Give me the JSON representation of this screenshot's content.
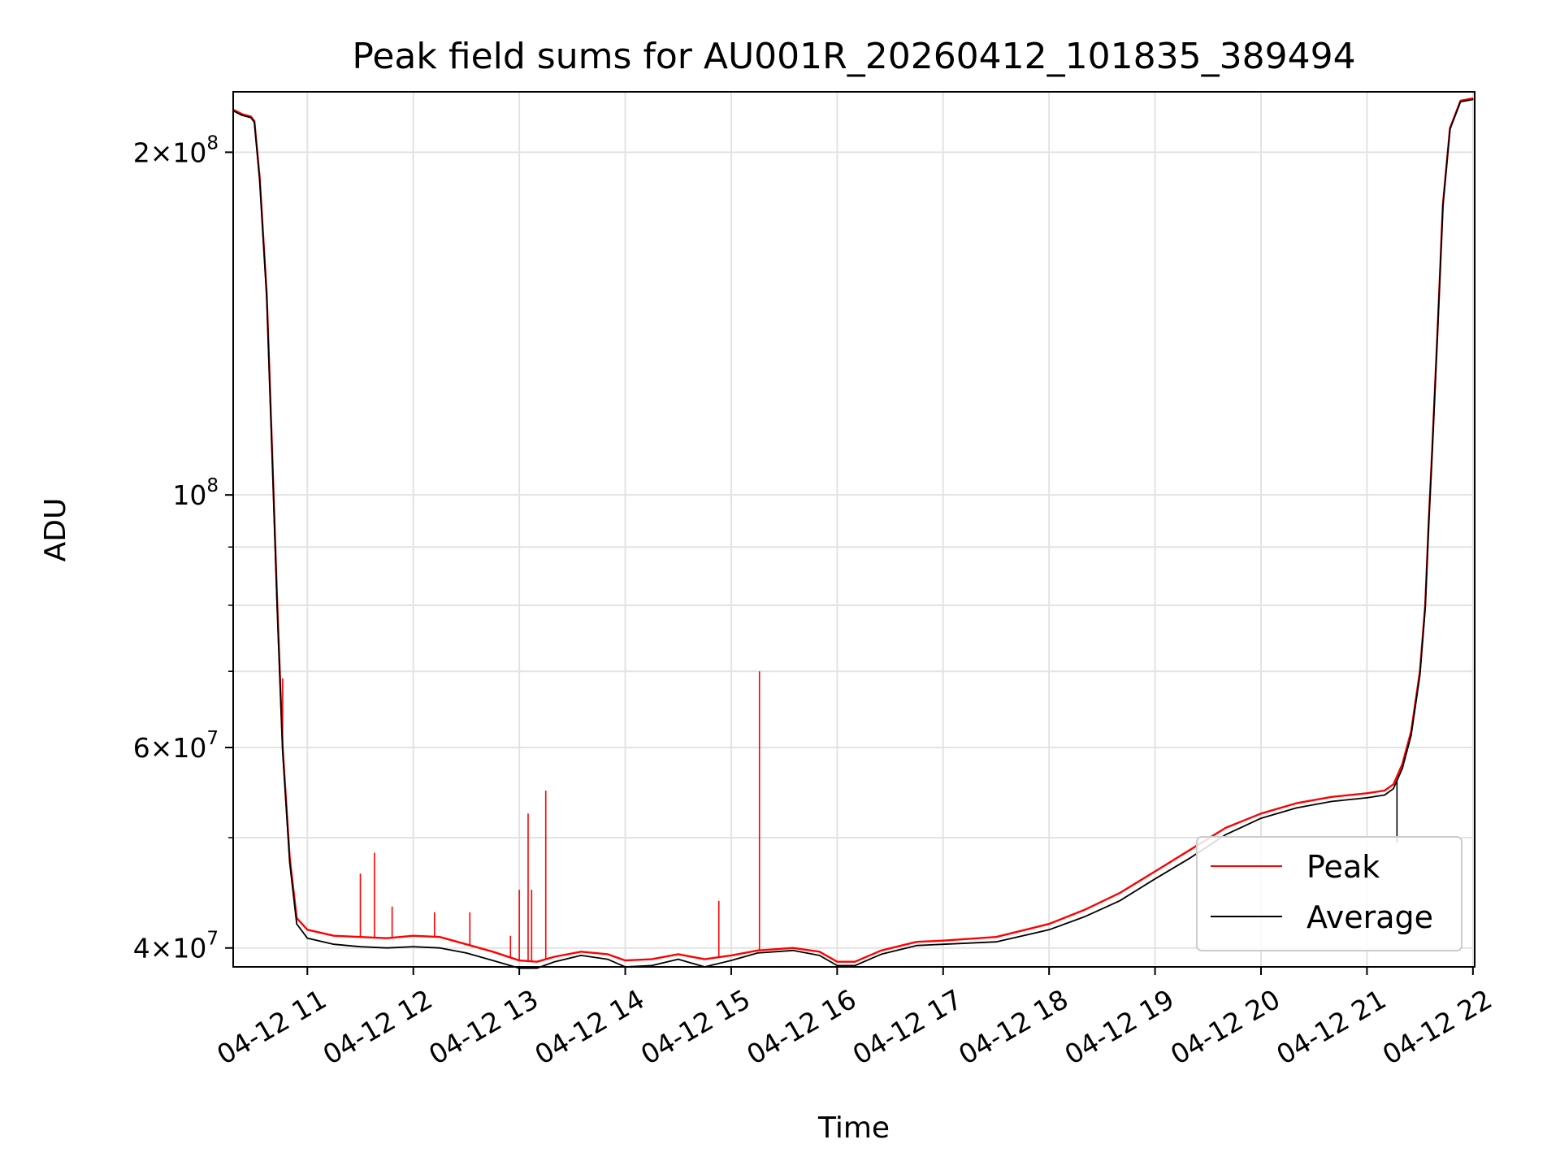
{
  "chart_data": {
    "type": "line",
    "title": "Peak field sums for AU001R_20260412_101835_389494",
    "xlabel": "Time",
    "ylabel": "ADU",
    "y_scale": "log",
    "ylim": [
      38500000,
      226000000
    ],
    "xlim": [
      "2026-04-12 10:18",
      "2026-04-12 22:01"
    ],
    "grid": true,
    "legend_position": "lower-right",
    "x_ticks": [
      {
        "value": "2026-04-12 11:00",
        "label": "04-12 11"
      },
      {
        "value": "2026-04-12 12:00",
        "label": "04-12 12"
      },
      {
        "value": "2026-04-12 13:00",
        "label": "04-12 13"
      },
      {
        "value": "2026-04-12 14:00",
        "label": "04-12 14"
      },
      {
        "value": "2026-04-12 15:00",
        "label": "04-12 15"
      },
      {
        "value": "2026-04-12 16:00",
        "label": "04-12 16"
      },
      {
        "value": "2026-04-12 17:00",
        "label": "04-12 17"
      },
      {
        "value": "2026-04-12 18:00",
        "label": "04-12 18"
      },
      {
        "value": "2026-04-12 19:00",
        "label": "04-12 19"
      },
      {
        "value": "2026-04-12 20:00",
        "label": "04-12 20"
      },
      {
        "value": "2026-04-12 21:00",
        "label": "04-12 21"
      },
      {
        "value": "2026-04-12 22:00",
        "label": "04-12 22"
      }
    ],
    "y_ticks": [
      {
        "value": 40000000,
        "base": "4×10",
        "exp": "7"
      },
      {
        "value": 60000000,
        "base": "6×10",
        "exp": "7"
      },
      {
        "value": 100000000,
        "base": "10",
        "exp": "8"
      },
      {
        "value": 200000000,
        "base": "2×10",
        "exp": "8"
      }
    ],
    "y_minor_ticks": [
      50000000,
      70000000,
      80000000,
      90000000
    ],
    "series": [
      {
        "name": "Peak",
        "color": "#ff0000",
        "points": [
          [
            "2026-04-12 10:18",
            218000000
          ],
          [
            "2026-04-12 10:23",
            216000000
          ],
          [
            "2026-04-12 10:28",
            215000000
          ],
          [
            "2026-04-12 10:30",
            213000000
          ],
          [
            "2026-04-12 10:33",
            190000000
          ],
          [
            "2026-04-12 10:37",
            150000000
          ],
          [
            "2026-04-12 10:40",
            110000000
          ],
          [
            "2026-04-12 10:43",
            80000000
          ],
          [
            "2026-04-12 10:46",
            60000000
          ],
          [
            "2026-04-12 10:50",
            48000000
          ],
          [
            "2026-04-12 10:54",
            42500000
          ],
          [
            "2026-04-12 11:00",
            41500000
          ],
          [
            "2026-04-12 11:15",
            41000000
          ],
          [
            "2026-04-12 11:30",
            40900000
          ],
          [
            "2026-04-12 11:45",
            40800000
          ],
          [
            "2026-04-12 12:00",
            41000000
          ],
          [
            "2026-04-12 12:15",
            40900000
          ],
          [
            "2026-04-12 12:30",
            40300000
          ],
          [
            "2026-04-12 12:45",
            39700000
          ],
          [
            "2026-04-12 13:00",
            39000000
          ],
          [
            "2026-04-12 13:10",
            38900000
          ],
          [
            "2026-04-12 13:20",
            39300000
          ],
          [
            "2026-04-12 13:35",
            39700000
          ],
          [
            "2026-04-12 13:50",
            39500000
          ],
          [
            "2026-04-12 14:00",
            39000000
          ],
          [
            "2026-04-12 14:15",
            39100000
          ],
          [
            "2026-04-12 14:30",
            39500000
          ],
          [
            "2026-04-12 14:45",
            39100000
          ],
          [
            "2026-04-12 15:00",
            39400000
          ],
          [
            "2026-04-12 15:15",
            39800000
          ],
          [
            "2026-04-12 15:35",
            40000000
          ],
          [
            "2026-04-12 15:50",
            39700000
          ],
          [
            "2026-04-12 16:00",
            38900000
          ],
          [
            "2026-04-12 16:10",
            38900000
          ],
          [
            "2026-04-12 16:25",
            39800000
          ],
          [
            "2026-04-12 16:45",
            40500000
          ],
          [
            "2026-04-12 17:00",
            40600000
          ],
          [
            "2026-04-12 17:30",
            40900000
          ],
          [
            "2026-04-12 18:00",
            42000000
          ],
          [
            "2026-04-12 18:20",
            43200000
          ],
          [
            "2026-04-12 18:40",
            44700000
          ],
          [
            "2026-04-12 19:00",
            46700000
          ],
          [
            "2026-04-12 19:20",
            48800000
          ],
          [
            "2026-04-12 19:40",
            51000000
          ],
          [
            "2026-04-12 20:00",
            52500000
          ],
          [
            "2026-04-12 20:20",
            53600000
          ],
          [
            "2026-04-12 20:40",
            54300000
          ],
          [
            "2026-04-12 21:00",
            54700000
          ],
          [
            "2026-04-12 21:10",
            55000000
          ],
          [
            "2026-04-12 21:15",
            55700000
          ],
          [
            "2026-04-12 21:20",
            58000000
          ],
          [
            "2026-04-12 21:25",
            62000000
          ],
          [
            "2026-04-12 21:30",
            70000000
          ],
          [
            "2026-04-12 21:33",
            80000000
          ],
          [
            "2026-04-12 21:35",
            95000000
          ],
          [
            "2026-04-12 21:37",
            110000000
          ],
          [
            "2026-04-12 21:40",
            140000000
          ],
          [
            "2026-04-12 21:43",
            180000000
          ],
          [
            "2026-04-12 21:47",
            210000000
          ],
          [
            "2026-04-12 21:53",
            222000000
          ],
          [
            "2026-04-12 22:00",
            223000000
          ]
        ],
        "spikes": [
          [
            "2026-04-12 10:46",
            69000000
          ],
          [
            "2026-04-12 11:30",
            46500000
          ],
          [
            "2026-04-12 11:38",
            48500000
          ],
          [
            "2026-04-12 11:48",
            43500000
          ],
          [
            "2026-04-12 12:12",
            43000000
          ],
          [
            "2026-04-12 12:32",
            43000000
          ],
          [
            "2026-04-12 12:55",
            41000000
          ],
          [
            "2026-04-12 13:00",
            45000000
          ],
          [
            "2026-04-12 13:05",
            52500000
          ],
          [
            "2026-04-12 13:07",
            45000000
          ],
          [
            "2026-04-12 13:15",
            55000000
          ],
          [
            "2026-04-12 14:53",
            44000000
          ],
          [
            "2026-04-12 15:16",
            70000000
          ]
        ]
      },
      {
        "name": "Average",
        "color": "#000000",
        "points": [
          [
            "2026-04-12 10:18",
            217500000
          ],
          [
            "2026-04-12 10:23",
            215500000
          ],
          [
            "2026-04-12 10:28",
            214500000
          ],
          [
            "2026-04-12 10:30",
            212500000
          ],
          [
            "2026-04-12 10:33",
            189000000
          ],
          [
            "2026-04-12 10:37",
            149000000
          ],
          [
            "2026-04-12 10:40",
            109000000
          ],
          [
            "2026-04-12 10:43",
            79000000
          ],
          [
            "2026-04-12 10:46",
            59500000
          ],
          [
            "2026-04-12 10:50",
            47500000
          ],
          [
            "2026-04-12 10:54",
            42000000
          ],
          [
            "2026-04-12 11:00",
            40800000
          ],
          [
            "2026-04-12 11:15",
            40300000
          ],
          [
            "2026-04-12 11:30",
            40100000
          ],
          [
            "2026-04-12 11:45",
            40000000
          ],
          [
            "2026-04-12 12:00",
            40100000
          ],
          [
            "2026-04-12 12:15",
            40000000
          ],
          [
            "2026-04-12 12:30",
            39600000
          ],
          [
            "2026-04-12 12:45",
            39000000
          ],
          [
            "2026-04-12 13:00",
            38400000
          ],
          [
            "2026-04-12 13:10",
            38400000
          ],
          [
            "2026-04-12 13:20",
            38900000
          ],
          [
            "2026-04-12 13:35",
            39400000
          ],
          [
            "2026-04-12 13:50",
            39100000
          ],
          [
            "2026-04-12 14:00",
            38500000
          ],
          [
            "2026-04-12 14:15",
            38600000
          ],
          [
            "2026-04-12 14:30",
            39100000
          ],
          [
            "2026-04-12 14:45",
            38500000
          ],
          [
            "2026-04-12 15:00",
            39000000
          ],
          [
            "2026-04-12 15:15",
            39600000
          ],
          [
            "2026-04-12 15:35",
            39800000
          ],
          [
            "2026-04-12 15:50",
            39400000
          ],
          [
            "2026-04-12 16:00",
            38600000
          ],
          [
            "2026-04-12 16:10",
            38600000
          ],
          [
            "2026-04-12 16:25",
            39500000
          ],
          [
            "2026-04-12 16:45",
            40200000
          ],
          [
            "2026-04-12 17:00",
            40300000
          ],
          [
            "2026-04-12 17:30",
            40500000
          ],
          [
            "2026-04-12 18:00",
            41500000
          ],
          [
            "2026-04-12 18:20",
            42600000
          ],
          [
            "2026-04-12 18:40",
            44000000
          ],
          [
            "2026-04-12 19:00",
            46000000
          ],
          [
            "2026-04-12 19:20",
            48000000
          ],
          [
            "2026-04-12 19:40",
            50300000
          ],
          [
            "2026-04-12 20:00",
            52000000
          ],
          [
            "2026-04-12 20:20",
            53100000
          ],
          [
            "2026-04-12 20:40",
            53800000
          ],
          [
            "2026-04-12 21:00",
            54200000
          ],
          [
            "2026-04-12 21:10",
            54500000
          ],
          [
            "2026-04-12 21:15",
            55200000
          ],
          [
            "2026-04-12 21:20",
            57500000
          ],
          [
            "2026-04-12 21:25",
            61500000
          ],
          [
            "2026-04-12 21:30",
            69500000
          ],
          [
            "2026-04-12 21:33",
            79500000
          ],
          [
            "2026-04-12 21:35",
            94500000
          ],
          [
            "2026-04-12 21:37",
            109500000
          ],
          [
            "2026-04-12 21:40",
            139500000
          ],
          [
            "2026-04-12 21:43",
            179500000
          ],
          [
            "2026-04-12 21:47",
            209500000
          ],
          [
            "2026-04-12 21:53",
            221500000
          ],
          [
            "2026-04-12 22:00",
            222500000
          ]
        ],
        "spikes": [
          [
            "2026-04-12 21:17",
            49500000
          ]
        ]
      }
    ]
  }
}
